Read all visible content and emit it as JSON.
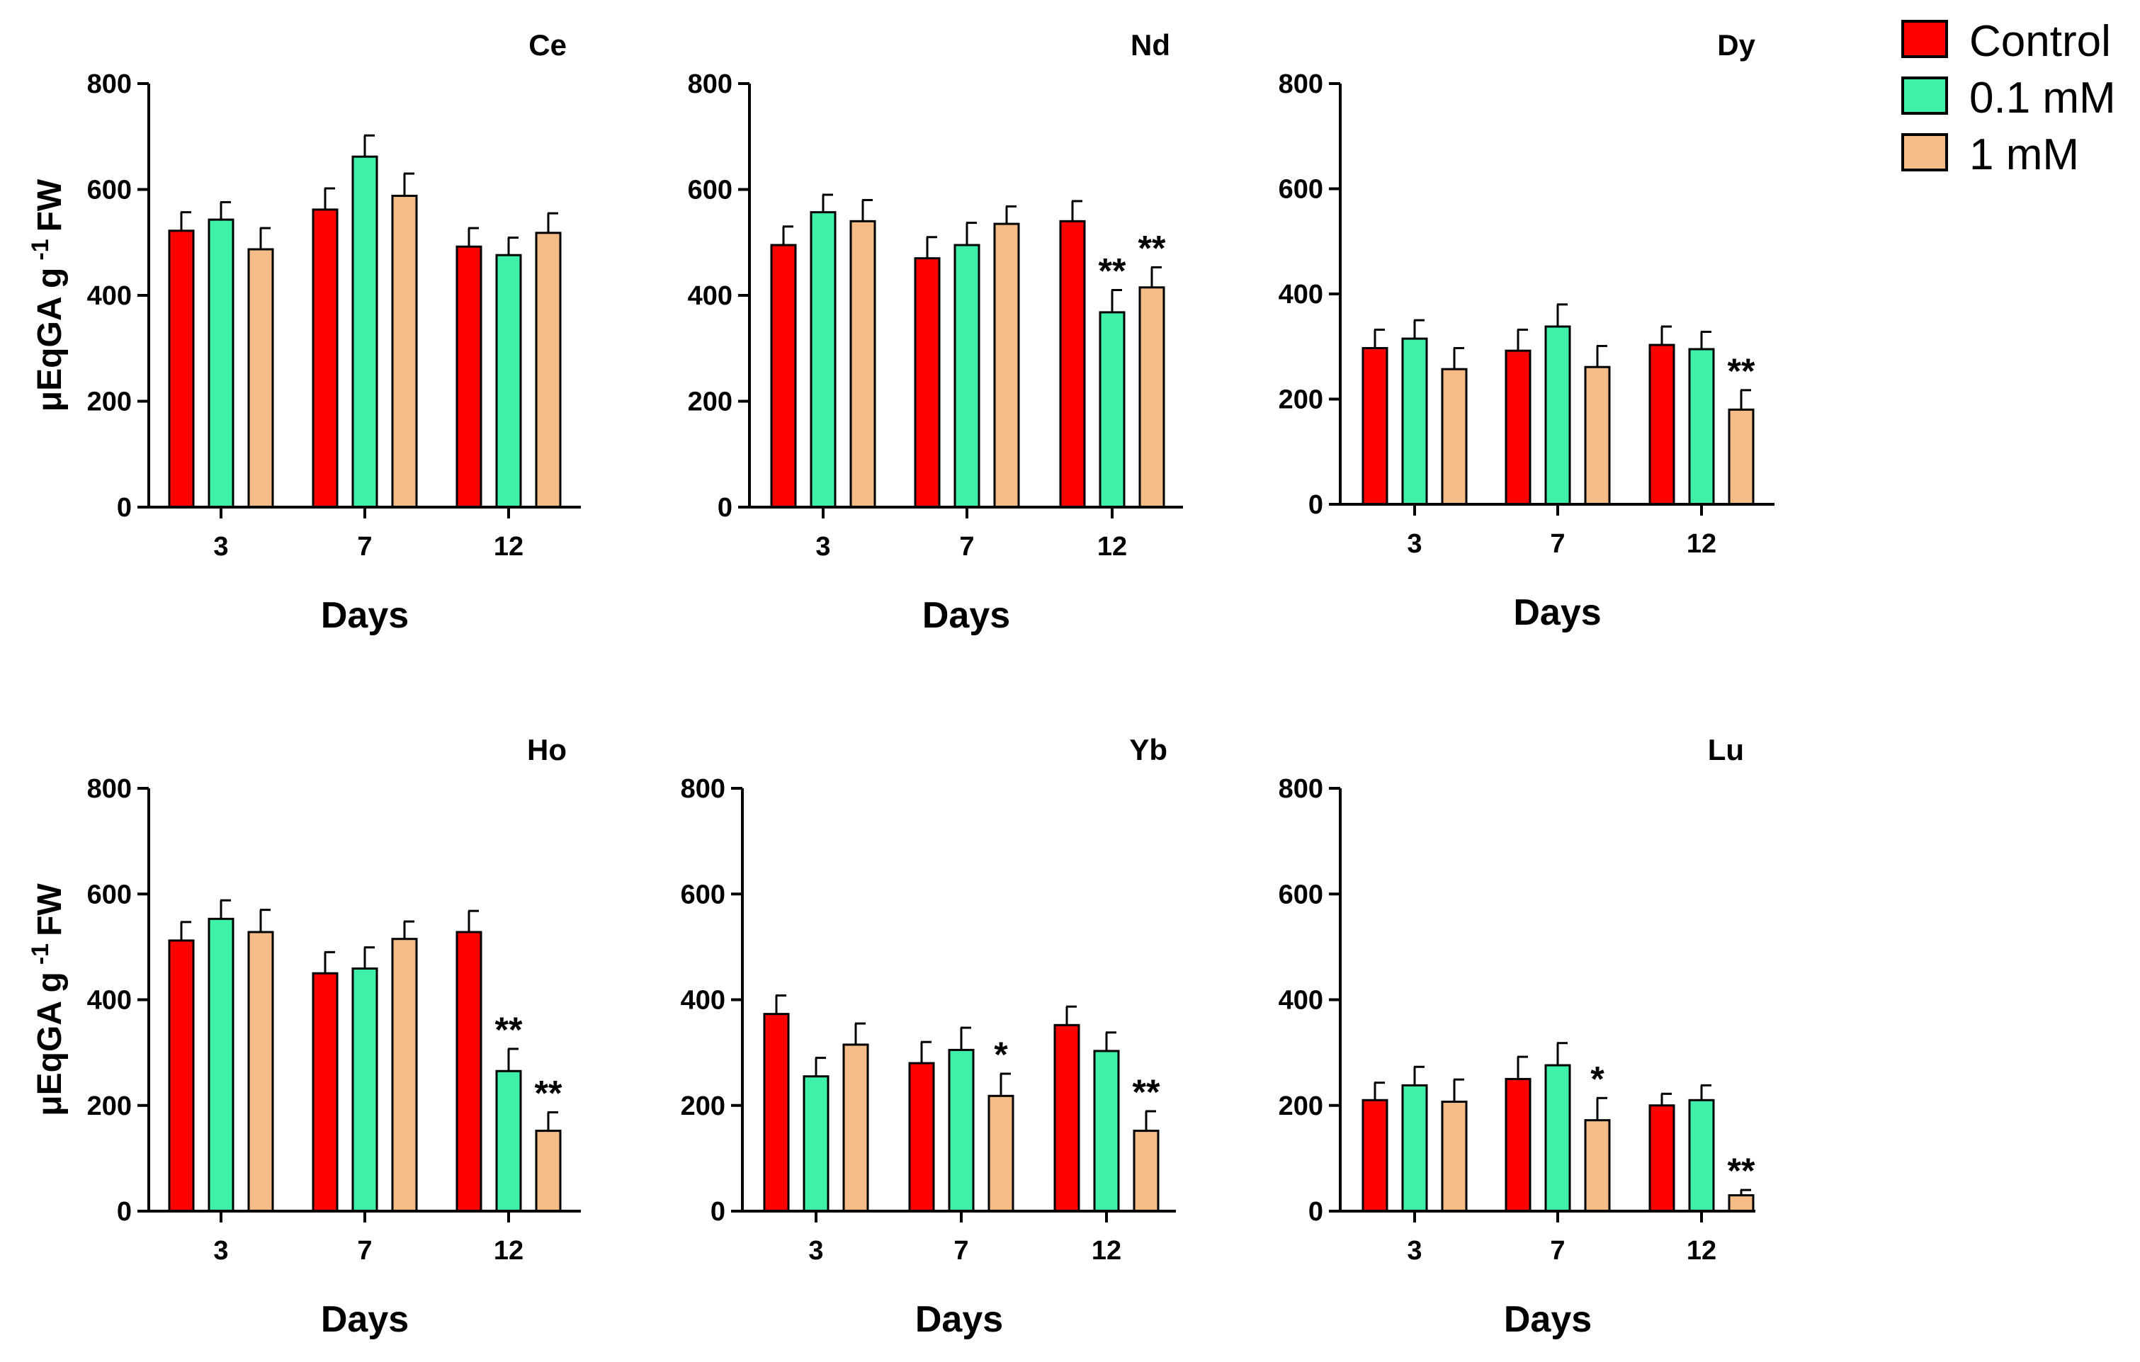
{
  "colors": {
    "control": "#ff0000",
    "low": "#3ff0a8",
    "high": "#f5bc87",
    "axis": "#000000"
  },
  "legend": [
    {
      "label": "Control",
      "color": "#ff0000"
    },
    {
      "label": "0.1 mM",
      "color": "#3ff0a8"
    },
    {
      "label": "1 mM",
      "color": "#f5bc87"
    }
  ],
  "chart_data": [
    {
      "type": "bar",
      "title": "Ce",
      "xlabel": "Days",
      "ylabel": "μEqGA g -1 FW",
      "ylabel_main": "μEqGA g",
      "ylabel_sup": "-1",
      "ylabel_tail": "FW",
      "categories": [
        "3",
        "7",
        "12"
      ],
      "ylim": [
        0,
        800
      ],
      "yticks": [
        "0",
        "200",
        "400",
        "600",
        "800"
      ],
      "series": [
        {
          "name": "Control",
          "values": [
            522,
            562,
            492
          ],
          "errors": [
            35,
            40,
            35
          ],
          "sig": [
            "",
            "",
            ""
          ]
        },
        {
          "name": "0.1 mM",
          "values": [
            543,
            662,
            476
          ],
          "errors": [
            33,
            40,
            33
          ],
          "sig": [
            "",
            "",
            ""
          ]
        },
        {
          "name": "1 mM",
          "values": [
            487,
            588,
            518
          ],
          "errors": [
            40,
            42,
            37
          ],
          "sig": [
            "",
            "",
            ""
          ]
        }
      ]
    },
    {
      "type": "bar",
      "title": "Nd",
      "xlabel": "Days",
      "ylabel": "",
      "categories": [
        "3",
        "7",
        "12"
      ],
      "ylim": [
        0,
        800
      ],
      "yticks": [
        "0",
        "200",
        "400",
        "600",
        "800"
      ],
      "series": [
        {
          "name": "Control",
          "values": [
            495,
            470,
            540
          ],
          "errors": [
            35,
            40,
            38
          ],
          "sig": [
            "",
            "",
            ""
          ]
        },
        {
          "name": "0.1 mM",
          "values": [
            557,
            495,
            368
          ],
          "errors": [
            33,
            42,
            42
          ],
          "sig": [
            "",
            "",
            "**"
          ]
        },
        {
          "name": "1 mM",
          "values": [
            540,
            535,
            415
          ],
          "errors": [
            40,
            33,
            38
          ],
          "sig": [
            "",
            "",
            "**"
          ]
        }
      ]
    },
    {
      "type": "bar",
      "title": "Dy",
      "xlabel": "Days",
      "ylabel": "",
      "categories": [
        "3",
        "7",
        "12"
      ],
      "ylim": [
        0,
        800
      ],
      "yticks": [
        "0",
        "200",
        "400",
        "600",
        "800"
      ],
      "series": [
        {
          "name": "Control",
          "values": [
            297,
            292,
            303
          ],
          "errors": [
            35,
            40,
            35
          ],
          "sig": [
            "",
            "",
            ""
          ]
        },
        {
          "name": "0.1 mM",
          "values": [
            315,
            338,
            295
          ],
          "errors": [
            35,
            42,
            33
          ],
          "sig": [
            "",
            "",
            ""
          ]
        },
        {
          "name": "1 mM",
          "values": [
            257,
            261,
            180
          ],
          "errors": [
            40,
            40,
            37
          ],
          "sig": [
            "",
            "",
            "**"
          ]
        }
      ]
    },
    {
      "type": "bar",
      "title": "Ho",
      "xlabel": "Days",
      "ylabel": "μEqGA g -1 FW",
      "ylabel_main": "μEqGA g",
      "ylabel_sup": "-1",
      "ylabel_tail": "FW",
      "categories": [
        "3",
        "7",
        "12"
      ],
      "ylim": [
        0,
        800
      ],
      "yticks": [
        "0",
        "200",
        "400",
        "600",
        "800"
      ],
      "series": [
        {
          "name": "Control",
          "values": [
            512,
            450,
            528
          ],
          "errors": [
            35,
            40,
            40
          ],
          "sig": [
            "",
            "",
            ""
          ]
        },
        {
          "name": "0.1 mM",
          "values": [
            553,
            459,
            265
          ],
          "errors": [
            35,
            40,
            42
          ],
          "sig": [
            "",
            "",
            "**"
          ]
        },
        {
          "name": "1 mM",
          "values": [
            528,
            515,
            152
          ],
          "errors": [
            42,
            33,
            35
          ],
          "sig": [
            "",
            "",
            "**"
          ]
        }
      ]
    },
    {
      "type": "bar",
      "title": "Yb",
      "xlabel": "Days",
      "ylabel": "",
      "categories": [
        "3",
        "7",
        "12"
      ],
      "ylim": [
        0,
        800
      ],
      "yticks": [
        "0",
        "200",
        "400",
        "600",
        "800"
      ],
      "series": [
        {
          "name": "Control",
          "values": [
            373,
            280,
            352
          ],
          "errors": [
            35,
            40,
            35
          ],
          "sig": [
            "",
            "",
            ""
          ]
        },
        {
          "name": "0.1 mM",
          "values": [
            255,
            305,
            303
          ],
          "errors": [
            35,
            42,
            35
          ],
          "sig": [
            "",
            "",
            ""
          ]
        },
        {
          "name": "1 mM",
          "values": [
            315,
            218,
            152
          ],
          "errors": [
            40,
            42,
            37
          ],
          "sig": [
            "",
            "*",
            "**"
          ]
        }
      ]
    },
    {
      "type": "bar",
      "title": "Lu",
      "xlabel": "Days",
      "ylabel": "",
      "categories": [
        "3",
        "7",
        "12"
      ],
      "ylim": [
        0,
        800
      ],
      "yticks": [
        "0",
        "200",
        "400",
        "600",
        "800"
      ],
      "series": [
        {
          "name": "Control",
          "values": [
            210,
            250,
            200
          ],
          "errors": [
            33,
            42,
            22
          ],
          "sig": [
            "",
            "",
            ""
          ]
        },
        {
          "name": "0.1 mM",
          "values": [
            238,
            276,
            210
          ],
          "errors": [
            35,
            42,
            28
          ],
          "sig": [
            "",
            "",
            ""
          ]
        },
        {
          "name": "1 mM",
          "values": [
            207,
            172,
            30
          ],
          "errors": [
            42,
            42,
            10
          ],
          "sig": [
            "",
            "*",
            "**"
          ]
        }
      ]
    }
  ]
}
